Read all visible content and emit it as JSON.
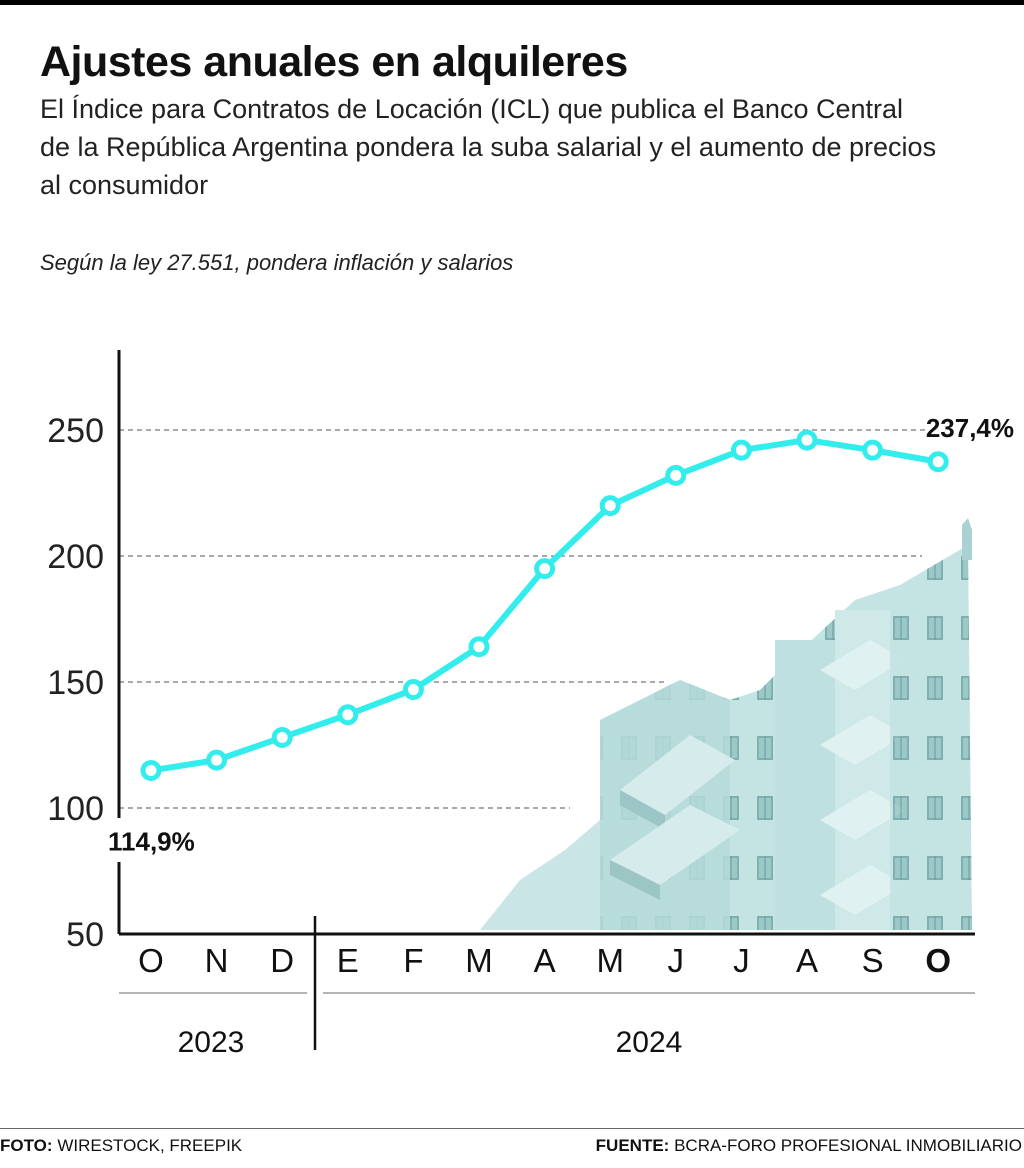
{
  "header": {
    "title": "Ajustes anuales en alquileres",
    "subtitle": "El Índice para Contratos de Locación (ICL) que publica el Banco Central de la República Argentina pondera la suba salarial y el aumento de precios al consumidor",
    "chart_note": "Según la ley 27.551, pondera inflación y salarios"
  },
  "footer": {
    "photo_label": "FOTO:",
    "photo_value": "WIRESTOCK, FREEPIK",
    "source_label": "FUENTE:",
    "source_value": "BCRA-FORO PROFESIONAL INMOBILIARIO"
  },
  "colors": {
    "line": "#33ecec",
    "grid": "#777777",
    "axis": "#111111",
    "building": "#b9dede"
  },
  "chart_data": {
    "type": "line",
    "title": "Según la ley 27.551, pondera inflación y salarios",
    "xlabel": "",
    "ylabel": "",
    "ylim": [
      50,
      280
    ],
    "yticks": [
      50,
      100,
      150,
      200,
      250
    ],
    "grid": true,
    "categories": [
      "O",
      "N",
      "D",
      "E",
      "F",
      "M",
      "A",
      "M",
      "J",
      "J",
      "A",
      "S",
      "O"
    ],
    "bold_category_index": 12,
    "year_groups": [
      {
        "label": "2023",
        "from_index": 0,
        "to_index": 2
      },
      {
        "label": "2024",
        "from_index": 3,
        "to_index": 12
      }
    ],
    "series": [
      {
        "name": "ICL",
        "values": [
          114.9,
          119,
          128,
          137,
          147,
          164,
          195,
          220,
          232,
          242,
          246,
          242,
          237.4
        ]
      }
    ],
    "annotations": [
      {
        "index": 0,
        "text": "114,9%"
      },
      {
        "index": 12,
        "text": "237,4%"
      }
    ]
  }
}
